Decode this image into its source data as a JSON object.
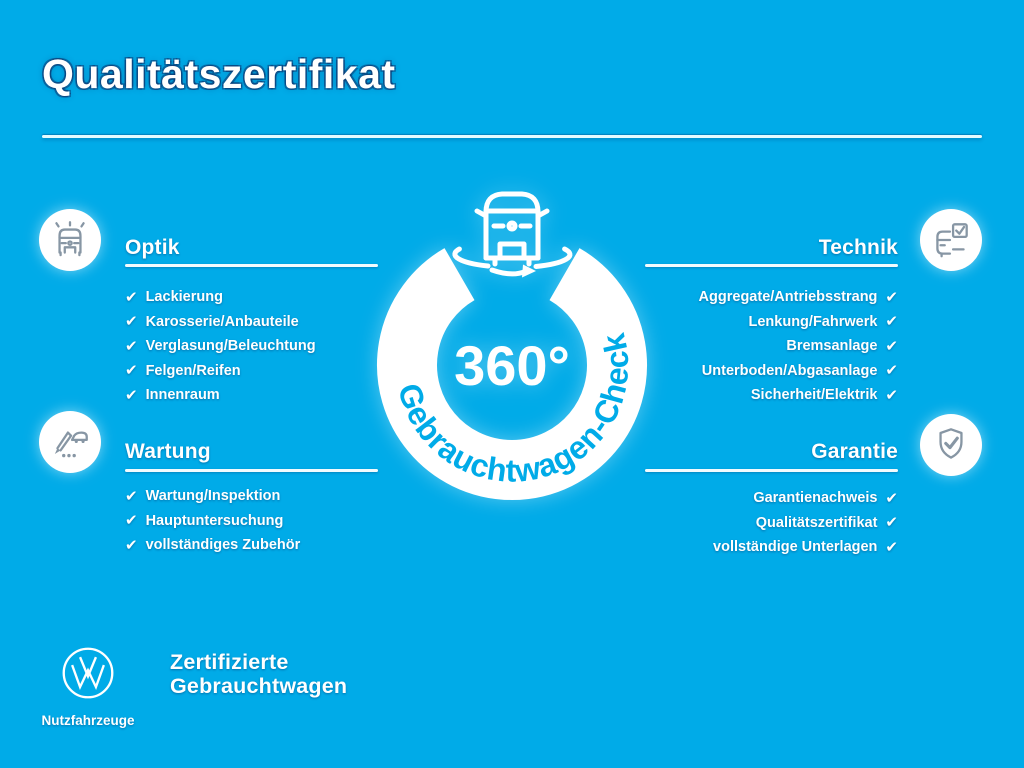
{
  "page": {
    "title": "Qualitätszertifikat",
    "background_color": "#00ABE8",
    "text_color": "#FFFFFF",
    "icon_stroke_color": "#8796A4"
  },
  "badge": {
    "center_text": "360°",
    "ring_text": "Gebrauchtwagen-Check",
    "icon": "rotating-van-icon"
  },
  "checkmark": "✔",
  "sections": [
    {
      "id": "optik",
      "title": "Optik",
      "side": "left",
      "icon": "car-shine-icon",
      "items": [
        "Lackierung",
        "Karosserie/Anbauteile",
        "Verglasung/Beleuchtung",
        "Felgen/Reifen",
        "Innenraum"
      ]
    },
    {
      "id": "wartung",
      "title": "Wartung",
      "side": "left",
      "icon": "pen-checklist-icon",
      "items": [
        "Wartung/Inspektion",
        "Hauptuntersuchung",
        "vollständiges Zubehör"
      ]
    },
    {
      "id": "technik",
      "title": "Technik",
      "side": "right",
      "icon": "car-checklist-icon",
      "items": [
        "Aggregate/Antriebsstrang",
        "Lenkung/Fahrwerk",
        "Bremsanlage",
        "Unterboden/Abgasanlage",
        "Sicherheit/Elektrik"
      ]
    },
    {
      "id": "garantie",
      "title": "Garantie",
      "side": "right",
      "icon": "shield-check-icon",
      "items": [
        "Garantienachweis",
        "Qualitätszertifikat",
        "vollständige Unterlagen"
      ]
    }
  ],
  "footer": {
    "logo": "vw-logo",
    "logo_brand": "Nutzfahrzeuge",
    "tagline_line1": "Zertifizierte",
    "tagline_line2": "Gebrauchtwagen"
  }
}
